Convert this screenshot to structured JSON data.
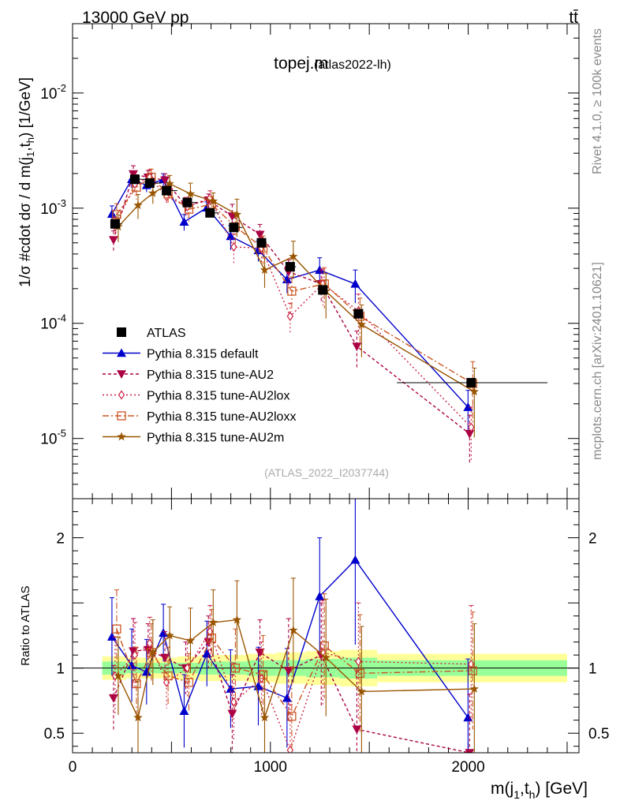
{
  "header": {
    "left": "13000 GeV pp",
    "right": "tt̄"
  },
  "side_labels": {
    "rivet": "Rivet 4.1.0, ≥ 100k events",
    "mcplots": "mcplots.cern.ch [arXiv:2401.10621]"
  },
  "chart_data": {
    "type": "line",
    "title": "topej.m",
    "subtitle": "(atlas2022-lh)",
    "watermark": "(ATLAS_2022_I2037744)",
    "xlabel": "m(j1,th) [GeV]",
    "ylabel": "1/σ #cdot dσ / d m(j1,th) [1/GeV]",
    "ratio_ylabel": "Ratio to ATLAS",
    "xlim": [
      0,
      2560
    ],
    "ylim": [
      3e-06,
      0.04
    ],
    "ratio_ylim": [
      0.35,
      2.3
    ],
    "x_ticks": [
      "0",
      "1000",
      "2000"
    ],
    "y_ticks": [
      "10^-5",
      "10^-4",
      "10^-3",
      "10^-2"
    ],
    "ratio_ticks": [
      "0.5",
      "1",
      "2"
    ],
    "legend_position": "middle-left",
    "bins": [
      {
        "lo": 150,
        "hi": 270
      },
      {
        "lo": 270,
        "hi": 350
      },
      {
        "lo": 350,
        "hi": 430
      },
      {
        "lo": 430,
        "hi": 530
      },
      {
        "lo": 530,
        "hi": 640
      },
      {
        "lo": 640,
        "hi": 760
      },
      {
        "lo": 760,
        "hi": 880
      },
      {
        "lo": 880,
        "hi": 1030
      },
      {
        "lo": 1030,
        "hi": 1180
      },
      {
        "lo": 1180,
        "hi": 1350
      },
      {
        "lo": 1350,
        "hi": 1540
      },
      {
        "lo": 1540,
        "hi": 2500
      }
    ],
    "x": [
      215,
      315,
      390,
      475,
      580,
      695,
      815,
      955,
      1100,
      1265,
      1445,
      2015
    ],
    "data": {
      "name": "ATLAS",
      "values": [
        0.00073,
        0.00178,
        0.00165,
        0.00142,
        0.00112,
        0.00091,
        0.00068,
        0.0005,
        0.00031,
        0.000195,
        0.000121,
        3.05e-05
      ],
      "band_inner": [
        0.05,
        0.04,
        0.04,
        0.04,
        0.04,
        0.05,
        0.05,
        0.06,
        0.06,
        0.07,
        0.08,
        0.06
      ],
      "band_outer": [
        0.09,
        0.08,
        0.08,
        0.08,
        0.09,
        0.1,
        0.1,
        0.11,
        0.12,
        0.13,
        0.14,
        0.11
      ]
    },
    "series": [
      {
        "name": "Pythia 8.315 default",
        "color": "#0000cc",
        "dash": "",
        "marker": "triangle-up",
        "values": [
          0.00089,
          0.00178,
          0.00158,
          0.00178,
          0.00076,
          0.00101,
          0.00057,
          0.00043,
          0.00024,
          0.00029,
          0.00022,
          1.87e-05
        ],
        "ratio": [
          1.24,
          1.02,
          0.97,
          1.27,
          0.67,
          1.11,
          0.84,
          0.86,
          0.77,
          1.55,
          1.83,
          0.62
        ],
        "ratio_err": [
          0.3,
          0.28,
          0.25,
          0.22,
          0.28,
          0.25,
          0.3,
          0.3,
          0.38,
          0.45,
          0.65,
          0.45
        ]
      },
      {
        "name": "Pythia 8.315 tune-AU2",
        "color": "#aa0044",
        "dash": "4,3",
        "marker": "triangle-down",
        "values": [
          0.00053,
          0.00198,
          0.00185,
          0.00175,
          0.00105,
          0.00117,
          0.00085,
          0.00059,
          0.00028,
          0.00022,
          6.3e-05,
          1.1e-05
        ],
        "ratio": [
          0.77,
          1.13,
          1.14,
          1.08,
          1.0,
          1.2,
          0.65,
          1.12,
          0.98,
          1.1,
          0.53,
          0.35
        ],
        "ratio_err": [
          0.25,
          0.25,
          0.2,
          0.2,
          0.2,
          0.2,
          0.3,
          0.25,
          0.4,
          0.4,
          0.45,
          0.45
        ]
      },
      {
        "name": "Pythia 8.315 tune-AU2lox",
        "color": "#cc2244",
        "dash": "2,3",
        "marker": "diamond",
        "values": [
          0.00069,
          0.00162,
          0.00186,
          0.00126,
          0.00103,
          0.00123,
          0.00046,
          0.00045,
          0.000115,
          0.00022,
          0.000128,
          1.25e-05
        ],
        "ratio": [
          0.94,
          1.1,
          1.19,
          0.89,
          1.0,
          1.28,
          0.74,
          0.92,
          0.37,
          1.12,
          1.05,
          1.03
        ],
        "ratio_err": [
          0.3,
          0.25,
          0.2,
          0.2,
          0.22,
          0.2,
          0.3,
          0.28,
          0.35,
          0.4,
          0.45,
          0.45
        ]
      },
      {
        "name": "Pythia 8.315 tune-AU2loxx",
        "color": "#cc5522",
        "dash": "8,3,2,3",
        "marker": "square",
        "values": [
          0.00088,
          0.00152,
          0.00186,
          0.00133,
          0.00098,
          0.00108,
          0.00069,
          0.00045,
          0.00019,
          0.00022,
          0.000115,
          3e-05
        ],
        "ratio": [
          1.3,
          0.88,
          1.12,
          0.94,
          0.89,
          1.23,
          1.0,
          0.95,
          0.63,
          1.17,
          0.96,
          0.98
        ],
        "ratio_err": [
          0.3,
          0.28,
          0.22,
          0.22,
          0.22,
          0.22,
          0.3,
          0.3,
          0.38,
          0.4,
          0.45,
          0.45
        ]
      },
      {
        "name": "Pythia 8.315 tune-AU2m",
        "color": "#995500",
        "dash": "",
        "marker": "star",
        "values": [
          0.00069,
          0.00106,
          0.00135,
          0.00163,
          0.00133,
          0.00115,
          0.00088,
          0.00029,
          0.00038,
          0.00019,
          9.75e-05,
          2.55e-05
        ],
        "ratio": [
          0.94,
          0.62,
          1.12,
          1.25,
          1.21,
          1.35,
          1.37,
          0.62,
          1.29,
          1.08,
          0.82,
          0.84
        ],
        "ratio_err": [
          0.3,
          0.28,
          0.25,
          0.22,
          0.25,
          0.25,
          0.3,
          0.35,
          0.4,
          0.45,
          0.5,
          0.5
        ]
      }
    ],
    "series_rel_err": [
      0.22,
      0.2,
      0.16,
      0.15,
      0.2,
      0.15,
      0.3,
      0.25,
      0.3,
      0.35,
      0.4,
      0.5
    ]
  }
}
